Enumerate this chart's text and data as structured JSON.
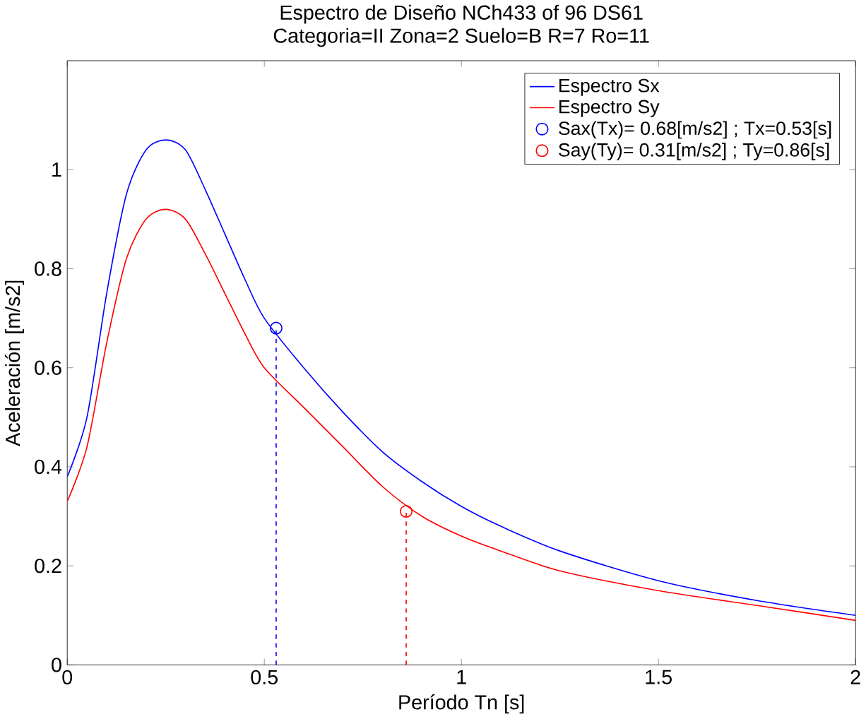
{
  "chart_data": {
    "type": "line",
    "title": "Espectro de Diseño NCh433 of 96 DS61",
    "subtitle": "Categoria=II  Zona=2  Suelo=B  R=7  Ro=11",
    "xlabel": "Período Tn [s]",
    "ylabel": "Aceleración [m/s2]",
    "xlim": [
      0,
      2
    ],
    "ylim": [
      0,
      1.22
    ],
    "xticks": [
      0,
      0.5,
      1,
      1.5,
      2
    ],
    "yticks": [
      0,
      0.2,
      0.4,
      0.6,
      0.8,
      1
    ],
    "grid": false,
    "legend": "top right",
    "series": [
      {
        "name": "Espectro Sx",
        "color": "#0000ff",
        "x": [
          0,
          0.05,
          0.1,
          0.15,
          0.2,
          0.25,
          0.3,
          0.35,
          0.4,
          0.45,
          0.5,
          0.6,
          0.7,
          0.8,
          0.9,
          1.0,
          1.1,
          1.25,
          1.5,
          1.75,
          2.0
        ],
        "values": [
          0.38,
          0.5,
          0.75,
          0.95,
          1.04,
          1.06,
          1.04,
          0.96,
          0.87,
          0.78,
          0.7,
          0.6,
          0.51,
          0.43,
          0.37,
          0.32,
          0.28,
          0.23,
          0.17,
          0.13,
          0.1
        ]
      },
      {
        "name": "Espectro Sy",
        "color": "#ff0000",
        "x": [
          0,
          0.05,
          0.1,
          0.15,
          0.2,
          0.25,
          0.3,
          0.35,
          0.4,
          0.45,
          0.5,
          0.6,
          0.7,
          0.8,
          0.9,
          1.0,
          1.1,
          1.25,
          1.5,
          1.75,
          2.0
        ],
        "values": [
          0.33,
          0.44,
          0.65,
          0.82,
          0.9,
          0.92,
          0.9,
          0.83,
          0.75,
          0.67,
          0.6,
          0.52,
          0.44,
          0.36,
          0.3,
          0.26,
          0.23,
          0.19,
          0.15,
          0.12,
          0.09
        ]
      },
      {
        "name": "Sax(Tx)= 0.68[m/s2]  ; Tx=0.53[s]",
        "color": "#0000ff",
        "type": "scatter",
        "marker": "circle",
        "x": [
          0.53
        ],
        "values": [
          0.68
        ]
      },
      {
        "name": "Say(Ty)= 0.31[m/s2]  ; Ty=0.86[s]",
        "color": "#ff0000",
        "type": "scatter",
        "marker": "circle",
        "x": [
          0.86
        ],
        "values": [
          0.31
        ]
      },
      {
        "color": "#0000ff",
        "type": "line",
        "line_style": "dashed",
        "x": [
          0.53,
          0.53
        ],
        "values": [
          0,
          0.68
        ]
      },
      {
        "color": "#ff0000",
        "type": "line",
        "line_style": "dashed",
        "x": [
          0.86,
          0.86
        ],
        "values": [
          0,
          0.31
        ]
      }
    ]
  }
}
